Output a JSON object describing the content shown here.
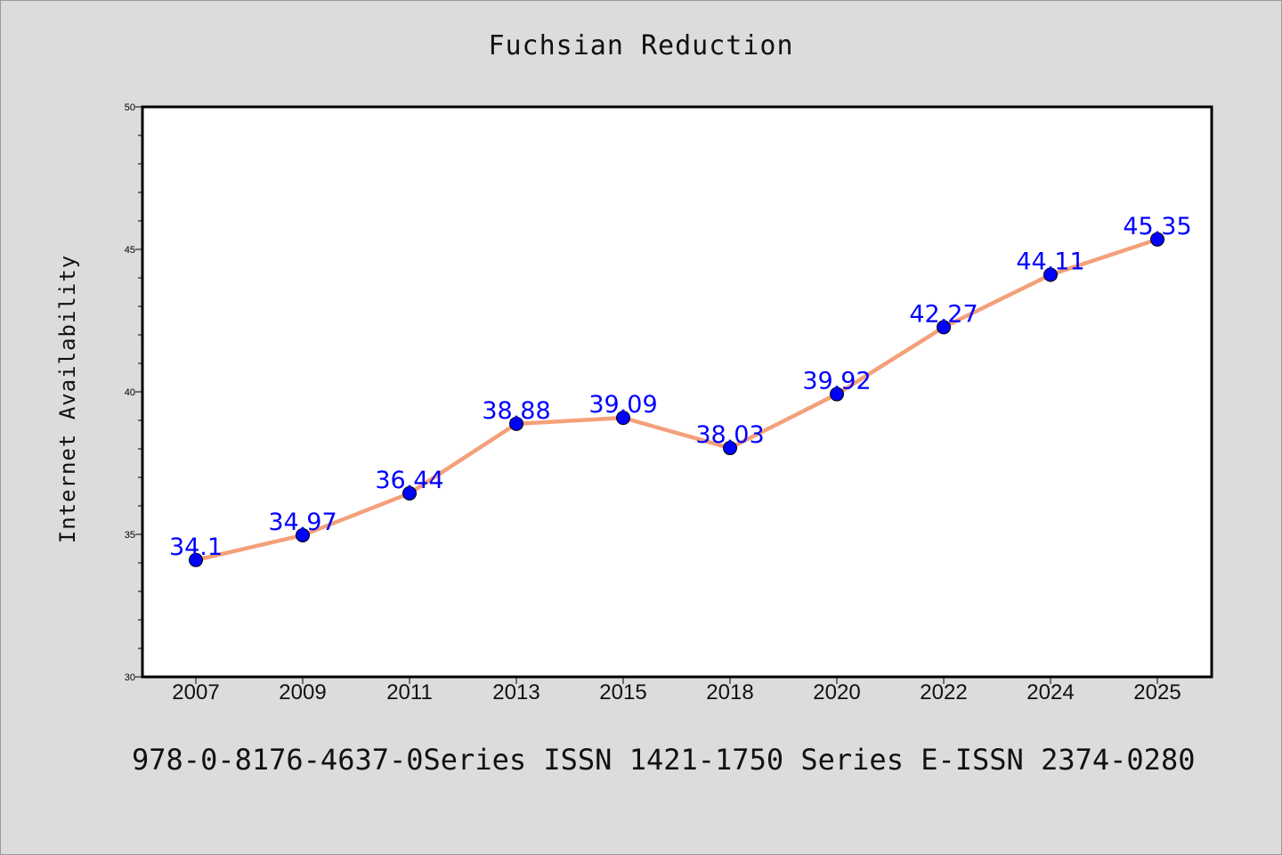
{
  "chart_data": {
    "type": "line",
    "title": "Fuchsian Reduction",
    "xlabel": "",
    "ylabel": "Internet Availability",
    "categories": [
      "2007",
      "2009",
      "2011",
      "2013",
      "2015",
      "2018",
      "2020",
      "2022",
      "2024",
      "2025"
    ],
    "series": [
      {
        "values": [
          34.1,
          34.97,
          36.44,
          38.88,
          39.09,
          38.03,
          39.92,
          42.27,
          44.11,
          45.35
        ]
      }
    ],
    "data_labels": [
      "34.1",
      "34.97",
      "36.44",
      "38.88",
      "39.09",
      "38.03",
      "39.92",
      "42.27",
      "44.11",
      "45.35"
    ],
    "ylim": [
      30,
      50
    ],
    "yticks": [
      30,
      35,
      40,
      45,
      50
    ],
    "grid": false,
    "colors": {
      "line": "#f4a07a",
      "marker": "#0000ff",
      "label": "#0000ff",
      "background": "#dcdcdc",
      "plot_background": "#ffffff"
    }
  },
  "footer": "978-0-8176-4637-0Series ISSN 1421-1750 Series E-ISSN 2374-0280"
}
